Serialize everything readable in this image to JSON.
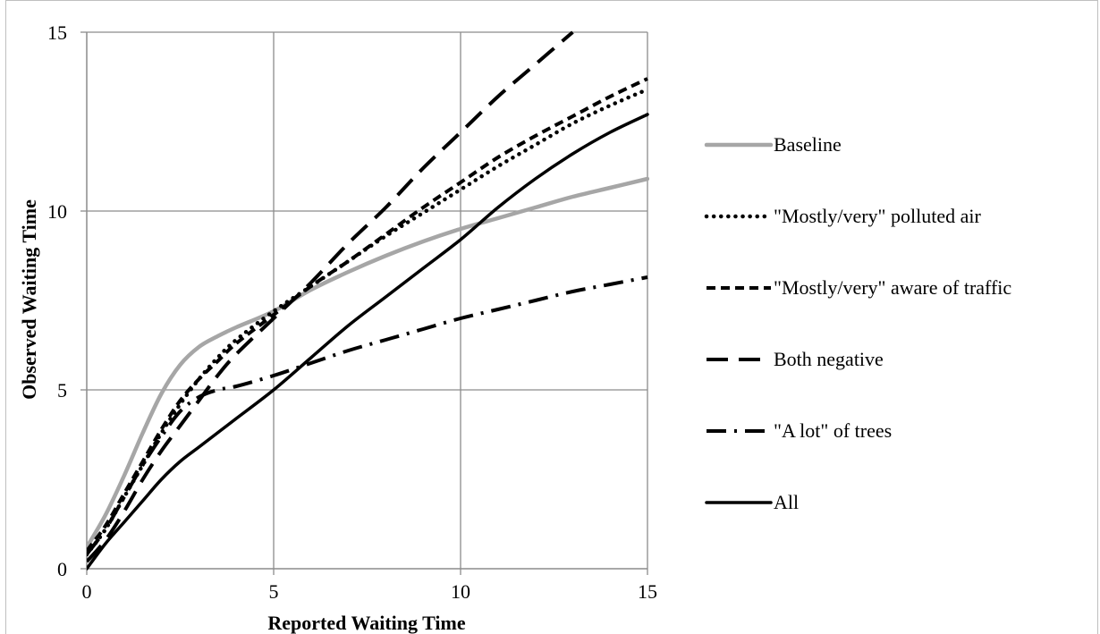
{
  "chart_data": {
    "type": "line",
    "xlabel": "Reported Waiting Time",
    "ylabel": "Observed Waiting Time",
    "xlim": [
      0,
      15
    ],
    "ylim": [
      0,
      15
    ],
    "xticks": [
      "0",
      "5",
      "10",
      "15"
    ],
    "yticks": [
      "0",
      "5",
      "10",
      "15"
    ],
    "grid": true,
    "legend_position": "right",
    "series": [
      {
        "name": "Baseline",
        "color": "#a6a6a6",
        "style": "solid",
        "x": [
          0,
          0.5,
          1,
          1.5,
          2,
          2.5,
          3,
          3.5,
          4,
          5,
          6,
          7,
          8,
          9,
          10,
          11,
          12,
          13,
          14,
          15
        ],
        "y": [
          0.6,
          1.5,
          2.6,
          3.8,
          4.9,
          5.7,
          6.2,
          6.5,
          6.75,
          7.2,
          7.8,
          8.3,
          8.75,
          9.15,
          9.5,
          9.8,
          10.1,
          10.4,
          10.65,
          10.9
        ]
      },
      {
        "name": "\"Mostly/very\" polluted air",
        "color": "#000000",
        "style": "dotted",
        "x": [
          0,
          0.5,
          1,
          1.5,
          2,
          2.5,
          3,
          3.5,
          4,
          5,
          6,
          7,
          8,
          9,
          10,
          11,
          12,
          13,
          14,
          15
        ],
        "y": [
          0.4,
          1.1,
          2.0,
          2.9,
          3.8,
          4.6,
          5.3,
          5.9,
          6.4,
          7.2,
          7.9,
          8.6,
          9.3,
          9.95,
          10.6,
          11.25,
          11.85,
          12.45,
          12.95,
          13.4
        ]
      },
      {
        "name": "\"Mostly/very\" aware of traffic",
        "color": "#000000",
        "style": "short-dash",
        "x": [
          0,
          0.5,
          1,
          1.5,
          2,
          2.5,
          3,
          3.5,
          4,
          5,
          6,
          7,
          8,
          9,
          10,
          11,
          12,
          13,
          14,
          15
        ],
        "y": [
          0.5,
          1.2,
          2.1,
          3.0,
          3.9,
          4.7,
          5.3,
          5.8,
          6.3,
          7.1,
          7.9,
          8.6,
          9.35,
          10.1,
          10.8,
          11.5,
          12.1,
          12.65,
          13.2,
          13.7
        ]
      },
      {
        "name": "Both negative",
        "color": "#000000",
        "style": "long-dash",
        "x": [
          0,
          0.5,
          1,
          1.5,
          2,
          2.5,
          3,
          3.5,
          4,
          5,
          6,
          7,
          8,
          9,
          10,
          11,
          12,
          13
        ],
        "y": [
          0.2,
          0.8,
          1.6,
          2.5,
          3.3,
          4.0,
          4.7,
          5.4,
          6.0,
          7.0,
          8.0,
          9.1,
          10.1,
          11.2,
          12.2,
          13.2,
          14.1,
          15.0
        ]
      },
      {
        "name": "\"A lot\" of trees",
        "color": "#000000",
        "style": "dash-dot",
        "x": [
          0,
          0.5,
          1,
          1.5,
          2,
          2.5,
          3,
          3.5,
          4,
          5,
          6,
          7,
          8,
          9,
          10,
          11,
          12,
          13,
          14,
          15
        ],
        "y": [
          0.4,
          1.1,
          2.0,
          2.9,
          3.7,
          4.4,
          4.8,
          5.0,
          5.1,
          5.4,
          5.75,
          6.1,
          6.4,
          6.7,
          7.0,
          7.25,
          7.5,
          7.75,
          7.95,
          8.15
        ]
      },
      {
        "name": "All",
        "color": "#000000",
        "style": "solid",
        "x": [
          0,
          0.5,
          1,
          1.5,
          2,
          2.5,
          3,
          3.5,
          4,
          5,
          6,
          7,
          8,
          9,
          10,
          11,
          12,
          13,
          14,
          15
        ],
        "y": [
          0.0,
          0.7,
          1.3,
          1.9,
          2.5,
          3.0,
          3.4,
          3.8,
          4.2,
          5.0,
          5.9,
          6.8,
          7.6,
          8.4,
          9.2,
          10.1,
          10.9,
          11.6,
          12.2,
          12.7
        ]
      }
    ]
  }
}
